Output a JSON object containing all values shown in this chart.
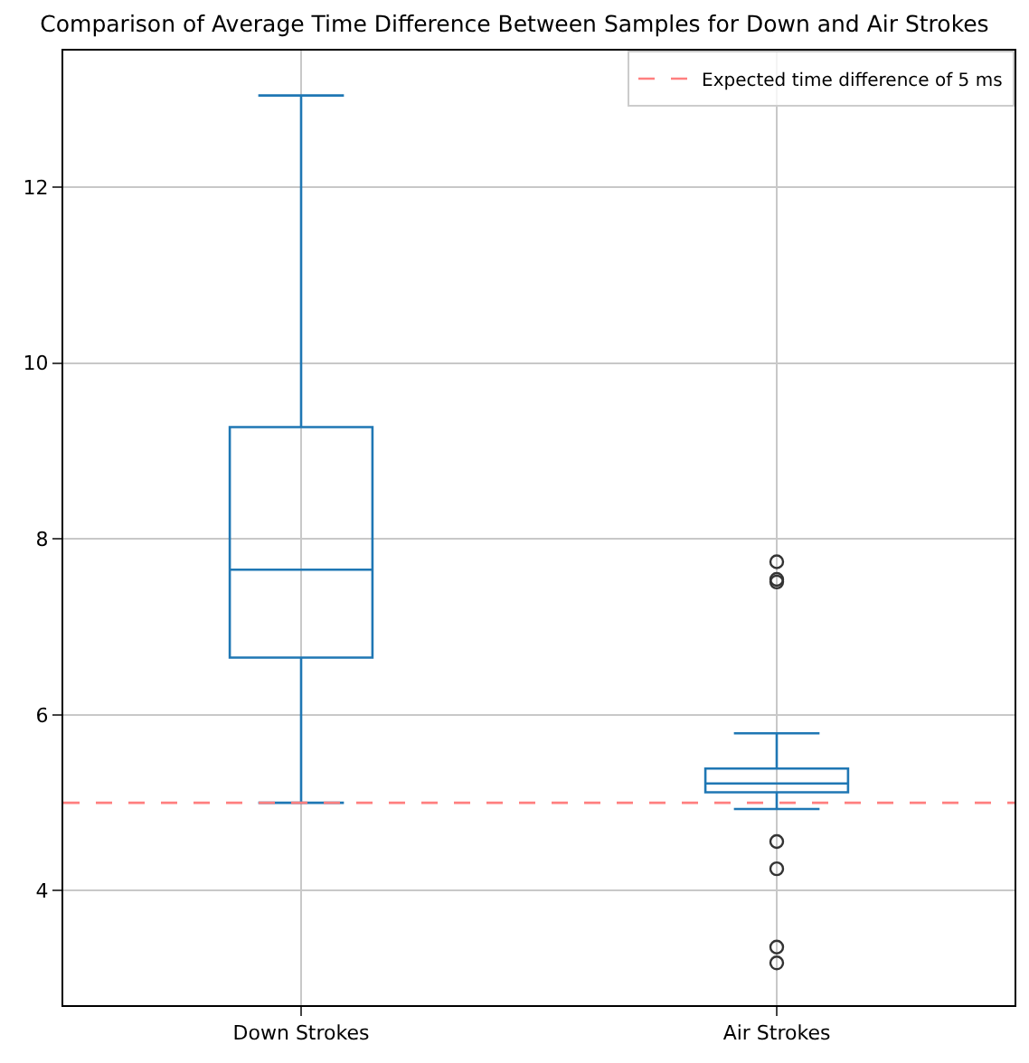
{
  "chart_data": {
    "type": "box",
    "title": "Comparison of Average Time Difference Between Samples for Down and Air Strokes",
    "categories": [
      "Down Strokes",
      "Air Strokes"
    ],
    "color": "#1f77b4",
    "boxes": [
      {
        "low": 5.0,
        "q1": 6.65,
        "median": 7.65,
        "q3": 9.27,
        "high": 13.04
      },
      {
        "low": 4.93,
        "q1": 5.12,
        "median": 5.22,
        "q3": 5.39,
        "high": 5.79,
        "outliers": [
          7.74,
          7.54,
          7.51,
          4.56,
          4.25,
          3.36,
          3.18
        ]
      }
    ],
    "ylim": [
      2.7,
      13.55
    ],
    "yticks": [
      4,
      6,
      8,
      10,
      12
    ],
    "ref_lines": [
      {
        "axis": "y",
        "value": 5,
        "label": "Expected time difference of 5 ms",
        "color": "#ff7f7f",
        "line_style": "dashed"
      }
    ],
    "grid": true,
    "legend": "top right"
  }
}
